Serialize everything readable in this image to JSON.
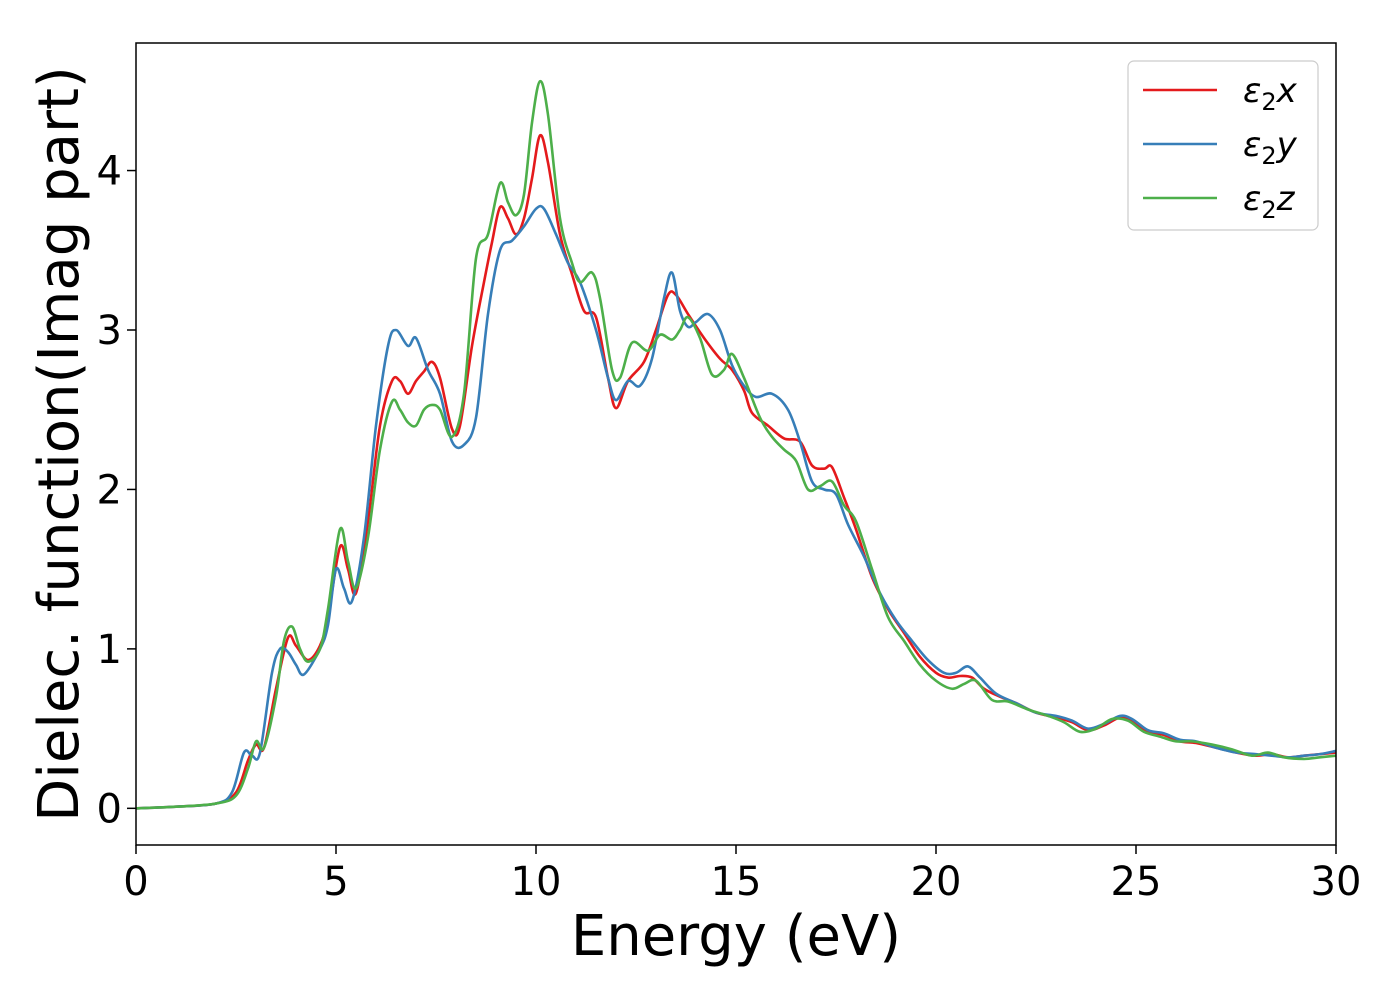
{
  "chart_data": {
    "type": "line",
    "xlabel": "Energy (eV)",
    "ylabel": "Dielec. function(Imag part)",
    "xlim": [
      0,
      30
    ],
    "ylim": [
      -0.23,
      4.8
    ],
    "xticks": [
      0,
      5,
      10,
      15,
      20,
      25,
      30
    ],
    "yticks": [
      0,
      1,
      2,
      3,
      4
    ],
    "grid": false,
    "legend_position": "top-right",
    "series": [
      {
        "name": "ε2x",
        "legend": {
          "main": "ε",
          "sub": "2",
          "tail": "x"
        },
        "color": "#e41a1c",
        "points": [
          [
            0,
            0.0
          ],
          [
            1,
            0.01
          ],
          [
            2,
            0.03
          ],
          [
            2.5,
            0.1
          ],
          [
            2.8,
            0.3
          ],
          [
            3.0,
            0.4
          ],
          [
            3.2,
            0.38
          ],
          [
            3.5,
            0.75
          ],
          [
            3.8,
            1.07
          ],
          [
            4.0,
            1.02
          ],
          [
            4.3,
            0.93
          ],
          [
            4.6,
            1.02
          ],
          [
            4.8,
            1.2
          ],
          [
            5.1,
            1.64
          ],
          [
            5.3,
            1.5
          ],
          [
            5.5,
            1.35
          ],
          [
            5.8,
            1.8
          ],
          [
            6.1,
            2.4
          ],
          [
            6.4,
            2.68
          ],
          [
            6.6,
            2.68
          ],
          [
            6.8,
            2.6
          ],
          [
            7.0,
            2.68
          ],
          [
            7.2,
            2.74
          ],
          [
            7.4,
            2.8
          ],
          [
            7.6,
            2.7
          ],
          [
            7.9,
            2.38
          ],
          [
            8.1,
            2.4
          ],
          [
            8.4,
            2.9
          ],
          [
            8.7,
            3.3
          ],
          [
            8.9,
            3.55
          ],
          [
            9.1,
            3.77
          ],
          [
            9.3,
            3.7
          ],
          [
            9.5,
            3.6
          ],
          [
            9.7,
            3.7
          ],
          [
            9.9,
            3.95
          ],
          [
            10.1,
            4.22
          ],
          [
            10.3,
            4.05
          ],
          [
            10.6,
            3.6
          ],
          [
            10.9,
            3.35
          ],
          [
            11.2,
            3.12
          ],
          [
            11.5,
            3.08
          ],
          [
            11.8,
            2.7
          ],
          [
            12.0,
            2.51
          ],
          [
            12.3,
            2.68
          ],
          [
            12.7,
            2.8
          ],
          [
            13.0,
            3.0
          ],
          [
            13.3,
            3.22
          ],
          [
            13.5,
            3.22
          ],
          [
            13.8,
            3.1
          ],
          [
            14.2,
            2.95
          ],
          [
            14.6,
            2.82
          ],
          [
            14.9,
            2.75
          ],
          [
            15.2,
            2.62
          ],
          [
            15.4,
            2.48
          ],
          [
            15.8,
            2.4
          ],
          [
            16.2,
            2.32
          ],
          [
            16.6,
            2.3
          ],
          [
            16.9,
            2.15
          ],
          [
            17.2,
            2.13
          ],
          [
            17.4,
            2.14
          ],
          [
            17.7,
            1.95
          ],
          [
            18.0,
            1.75
          ],
          [
            18.4,
            1.45
          ],
          [
            18.8,
            1.25
          ],
          [
            19.2,
            1.1
          ],
          [
            19.6,
            0.95
          ],
          [
            20.0,
            0.85
          ],
          [
            20.3,
            0.82
          ],
          [
            20.6,
            0.83
          ],
          [
            20.9,
            0.82
          ],
          [
            21.2,
            0.75
          ],
          [
            21.6,
            0.7
          ],
          [
            22.0,
            0.66
          ],
          [
            22.5,
            0.6
          ],
          [
            23.0,
            0.57
          ],
          [
            23.4,
            0.54
          ],
          [
            23.8,
            0.49
          ],
          [
            24.2,
            0.52
          ],
          [
            24.6,
            0.57
          ],
          [
            24.9,
            0.55
          ],
          [
            25.3,
            0.48
          ],
          [
            25.7,
            0.46
          ],
          [
            26.1,
            0.42
          ],
          [
            26.5,
            0.41
          ],
          [
            27.0,
            0.38
          ],
          [
            27.5,
            0.35
          ],
          [
            28.0,
            0.33
          ],
          [
            28.4,
            0.34
          ],
          [
            28.8,
            0.32
          ],
          [
            29.2,
            0.33
          ],
          [
            29.6,
            0.34
          ],
          [
            30,
            0.35
          ]
        ]
      },
      {
        "name": "ε2y",
        "legend": {
          "main": "ε",
          "sub": "2",
          "tail": "y"
        },
        "color": "#377eb8",
        "points": [
          [
            0,
            0.0
          ],
          [
            1,
            0.01
          ],
          [
            2,
            0.03
          ],
          [
            2.4,
            0.1
          ],
          [
            2.7,
            0.35
          ],
          [
            2.9,
            0.33
          ],
          [
            3.1,
            0.35
          ],
          [
            3.4,
            0.85
          ],
          [
            3.6,
            1.0
          ],
          [
            3.8,
            0.98
          ],
          [
            4.0,
            0.9
          ],
          [
            4.2,
            0.84
          ],
          [
            4.6,
            1.0
          ],
          [
            4.8,
            1.15
          ],
          [
            5.0,
            1.5
          ],
          [
            5.2,
            1.38
          ],
          [
            5.4,
            1.3
          ],
          [
            5.7,
            1.7
          ],
          [
            6.0,
            2.4
          ],
          [
            6.3,
            2.9
          ],
          [
            6.5,
            3.0
          ],
          [
            6.8,
            2.9
          ],
          [
            7.0,
            2.95
          ],
          [
            7.3,
            2.75
          ],
          [
            7.6,
            2.6
          ],
          [
            7.9,
            2.3
          ],
          [
            8.2,
            2.28
          ],
          [
            8.5,
            2.45
          ],
          [
            8.8,
            3.1
          ],
          [
            9.1,
            3.5
          ],
          [
            9.4,
            3.56
          ],
          [
            9.7,
            3.65
          ],
          [
            10.0,
            3.76
          ],
          [
            10.2,
            3.76
          ],
          [
            10.5,
            3.6
          ],
          [
            10.8,
            3.42
          ],
          [
            11.1,
            3.3
          ],
          [
            11.5,
            3.0
          ],
          [
            11.8,
            2.7
          ],
          [
            12.0,
            2.56
          ],
          [
            12.3,
            2.68
          ],
          [
            12.6,
            2.65
          ],
          [
            12.9,
            2.82
          ],
          [
            13.2,
            3.2
          ],
          [
            13.4,
            3.36
          ],
          [
            13.6,
            3.12
          ],
          [
            13.8,
            3.02
          ],
          [
            14.0,
            3.05
          ],
          [
            14.3,
            3.1
          ],
          [
            14.6,
            3.0
          ],
          [
            14.9,
            2.78
          ],
          [
            15.2,
            2.65
          ],
          [
            15.5,
            2.58
          ],
          [
            15.9,
            2.6
          ],
          [
            16.3,
            2.5
          ],
          [
            16.6,
            2.3
          ],
          [
            16.9,
            2.05
          ],
          [
            17.2,
            2.0
          ],
          [
            17.5,
            1.97
          ],
          [
            17.8,
            1.78
          ],
          [
            18.2,
            1.58
          ],
          [
            18.6,
            1.35
          ],
          [
            19.0,
            1.18
          ],
          [
            19.4,
            1.05
          ],
          [
            19.8,
            0.93
          ],
          [
            20.2,
            0.85
          ],
          [
            20.5,
            0.85
          ],
          [
            20.8,
            0.89
          ],
          [
            21.1,
            0.82
          ],
          [
            21.5,
            0.72
          ],
          [
            22.0,
            0.66
          ],
          [
            22.5,
            0.6
          ],
          [
            23.0,
            0.58
          ],
          [
            23.4,
            0.55
          ],
          [
            23.8,
            0.5
          ],
          [
            24.2,
            0.53
          ],
          [
            24.6,
            0.58
          ],
          [
            24.9,
            0.56
          ],
          [
            25.3,
            0.49
          ],
          [
            25.7,
            0.47
          ],
          [
            26.1,
            0.43
          ],
          [
            26.5,
            0.42
          ],
          [
            27.0,
            0.38
          ],
          [
            27.5,
            0.35
          ],
          [
            28.0,
            0.34
          ],
          [
            28.4,
            0.33
          ],
          [
            28.8,
            0.32
          ],
          [
            29.2,
            0.33
          ],
          [
            29.6,
            0.34
          ],
          [
            30,
            0.36
          ]
        ]
      },
      {
        "name": "ε2z",
        "legend": {
          "main": "ε",
          "sub": "2",
          "tail": "z"
        },
        "color": "#4daf4a",
        "points": [
          [
            0,
            0.0
          ],
          [
            1,
            0.01
          ],
          [
            2,
            0.03
          ],
          [
            2.5,
            0.08
          ],
          [
            2.8,
            0.25
          ],
          [
            3.0,
            0.42
          ],
          [
            3.2,
            0.38
          ],
          [
            3.5,
            0.7
          ],
          [
            3.7,
            1.05
          ],
          [
            3.9,
            1.14
          ],
          [
            4.1,
            1.0
          ],
          [
            4.3,
            0.92
          ],
          [
            4.6,
            1.0
          ],
          [
            4.8,
            1.25
          ],
          [
            5.1,
            1.75
          ],
          [
            5.3,
            1.55
          ],
          [
            5.5,
            1.38
          ],
          [
            5.8,
            1.7
          ],
          [
            6.1,
            2.25
          ],
          [
            6.4,
            2.55
          ],
          [
            6.6,
            2.5
          ],
          [
            6.8,
            2.42
          ],
          [
            7.0,
            2.4
          ],
          [
            7.2,
            2.5
          ],
          [
            7.4,
            2.53
          ],
          [
            7.6,
            2.5
          ],
          [
            7.9,
            2.33
          ],
          [
            8.2,
            2.6
          ],
          [
            8.5,
            3.45
          ],
          [
            8.8,
            3.6
          ],
          [
            9.1,
            3.92
          ],
          [
            9.3,
            3.8
          ],
          [
            9.5,
            3.72
          ],
          [
            9.7,
            3.85
          ],
          [
            9.9,
            4.3
          ],
          [
            10.1,
            4.56
          ],
          [
            10.3,
            4.35
          ],
          [
            10.6,
            3.7
          ],
          [
            10.9,
            3.42
          ],
          [
            11.1,
            3.3
          ],
          [
            11.4,
            3.36
          ],
          [
            11.6,
            3.2
          ],
          [
            11.9,
            2.75
          ],
          [
            12.1,
            2.7
          ],
          [
            12.4,
            2.92
          ],
          [
            12.8,
            2.87
          ],
          [
            13.1,
            2.97
          ],
          [
            13.4,
            2.94
          ],
          [
            13.6,
            3.0
          ],
          [
            13.8,
            3.08
          ],
          [
            14.1,
            2.95
          ],
          [
            14.4,
            2.72
          ],
          [
            14.7,
            2.75
          ],
          [
            14.9,
            2.85
          ],
          [
            15.2,
            2.7
          ],
          [
            15.6,
            2.45
          ],
          [
            15.9,
            2.33
          ],
          [
            16.2,
            2.25
          ],
          [
            16.5,
            2.18
          ],
          [
            16.8,
            2.0
          ],
          [
            17.1,
            2.02
          ],
          [
            17.4,
            2.05
          ],
          [
            17.7,
            1.9
          ],
          [
            18.0,
            1.8
          ],
          [
            18.4,
            1.5
          ],
          [
            18.8,
            1.2
          ],
          [
            19.2,
            1.05
          ],
          [
            19.6,
            0.9
          ],
          [
            20.0,
            0.8
          ],
          [
            20.4,
            0.75
          ],
          [
            20.7,
            0.78
          ],
          [
            21.0,
            0.8
          ],
          [
            21.4,
            0.68
          ],
          [
            21.8,
            0.67
          ],
          [
            22.3,
            0.62
          ],
          [
            22.8,
            0.58
          ],
          [
            23.2,
            0.54
          ],
          [
            23.6,
            0.48
          ],
          [
            24.0,
            0.5
          ],
          [
            24.4,
            0.56
          ],
          [
            24.8,
            0.55
          ],
          [
            25.2,
            0.48
          ],
          [
            25.6,
            0.45
          ],
          [
            26.0,
            0.42
          ],
          [
            26.4,
            0.42
          ],
          [
            26.9,
            0.4
          ],
          [
            27.4,
            0.37
          ],
          [
            27.9,
            0.33
          ],
          [
            28.3,
            0.35
          ],
          [
            28.7,
            0.32
          ],
          [
            29.2,
            0.31
          ],
          [
            29.6,
            0.32
          ],
          [
            30,
            0.33
          ]
        ]
      }
    ]
  }
}
